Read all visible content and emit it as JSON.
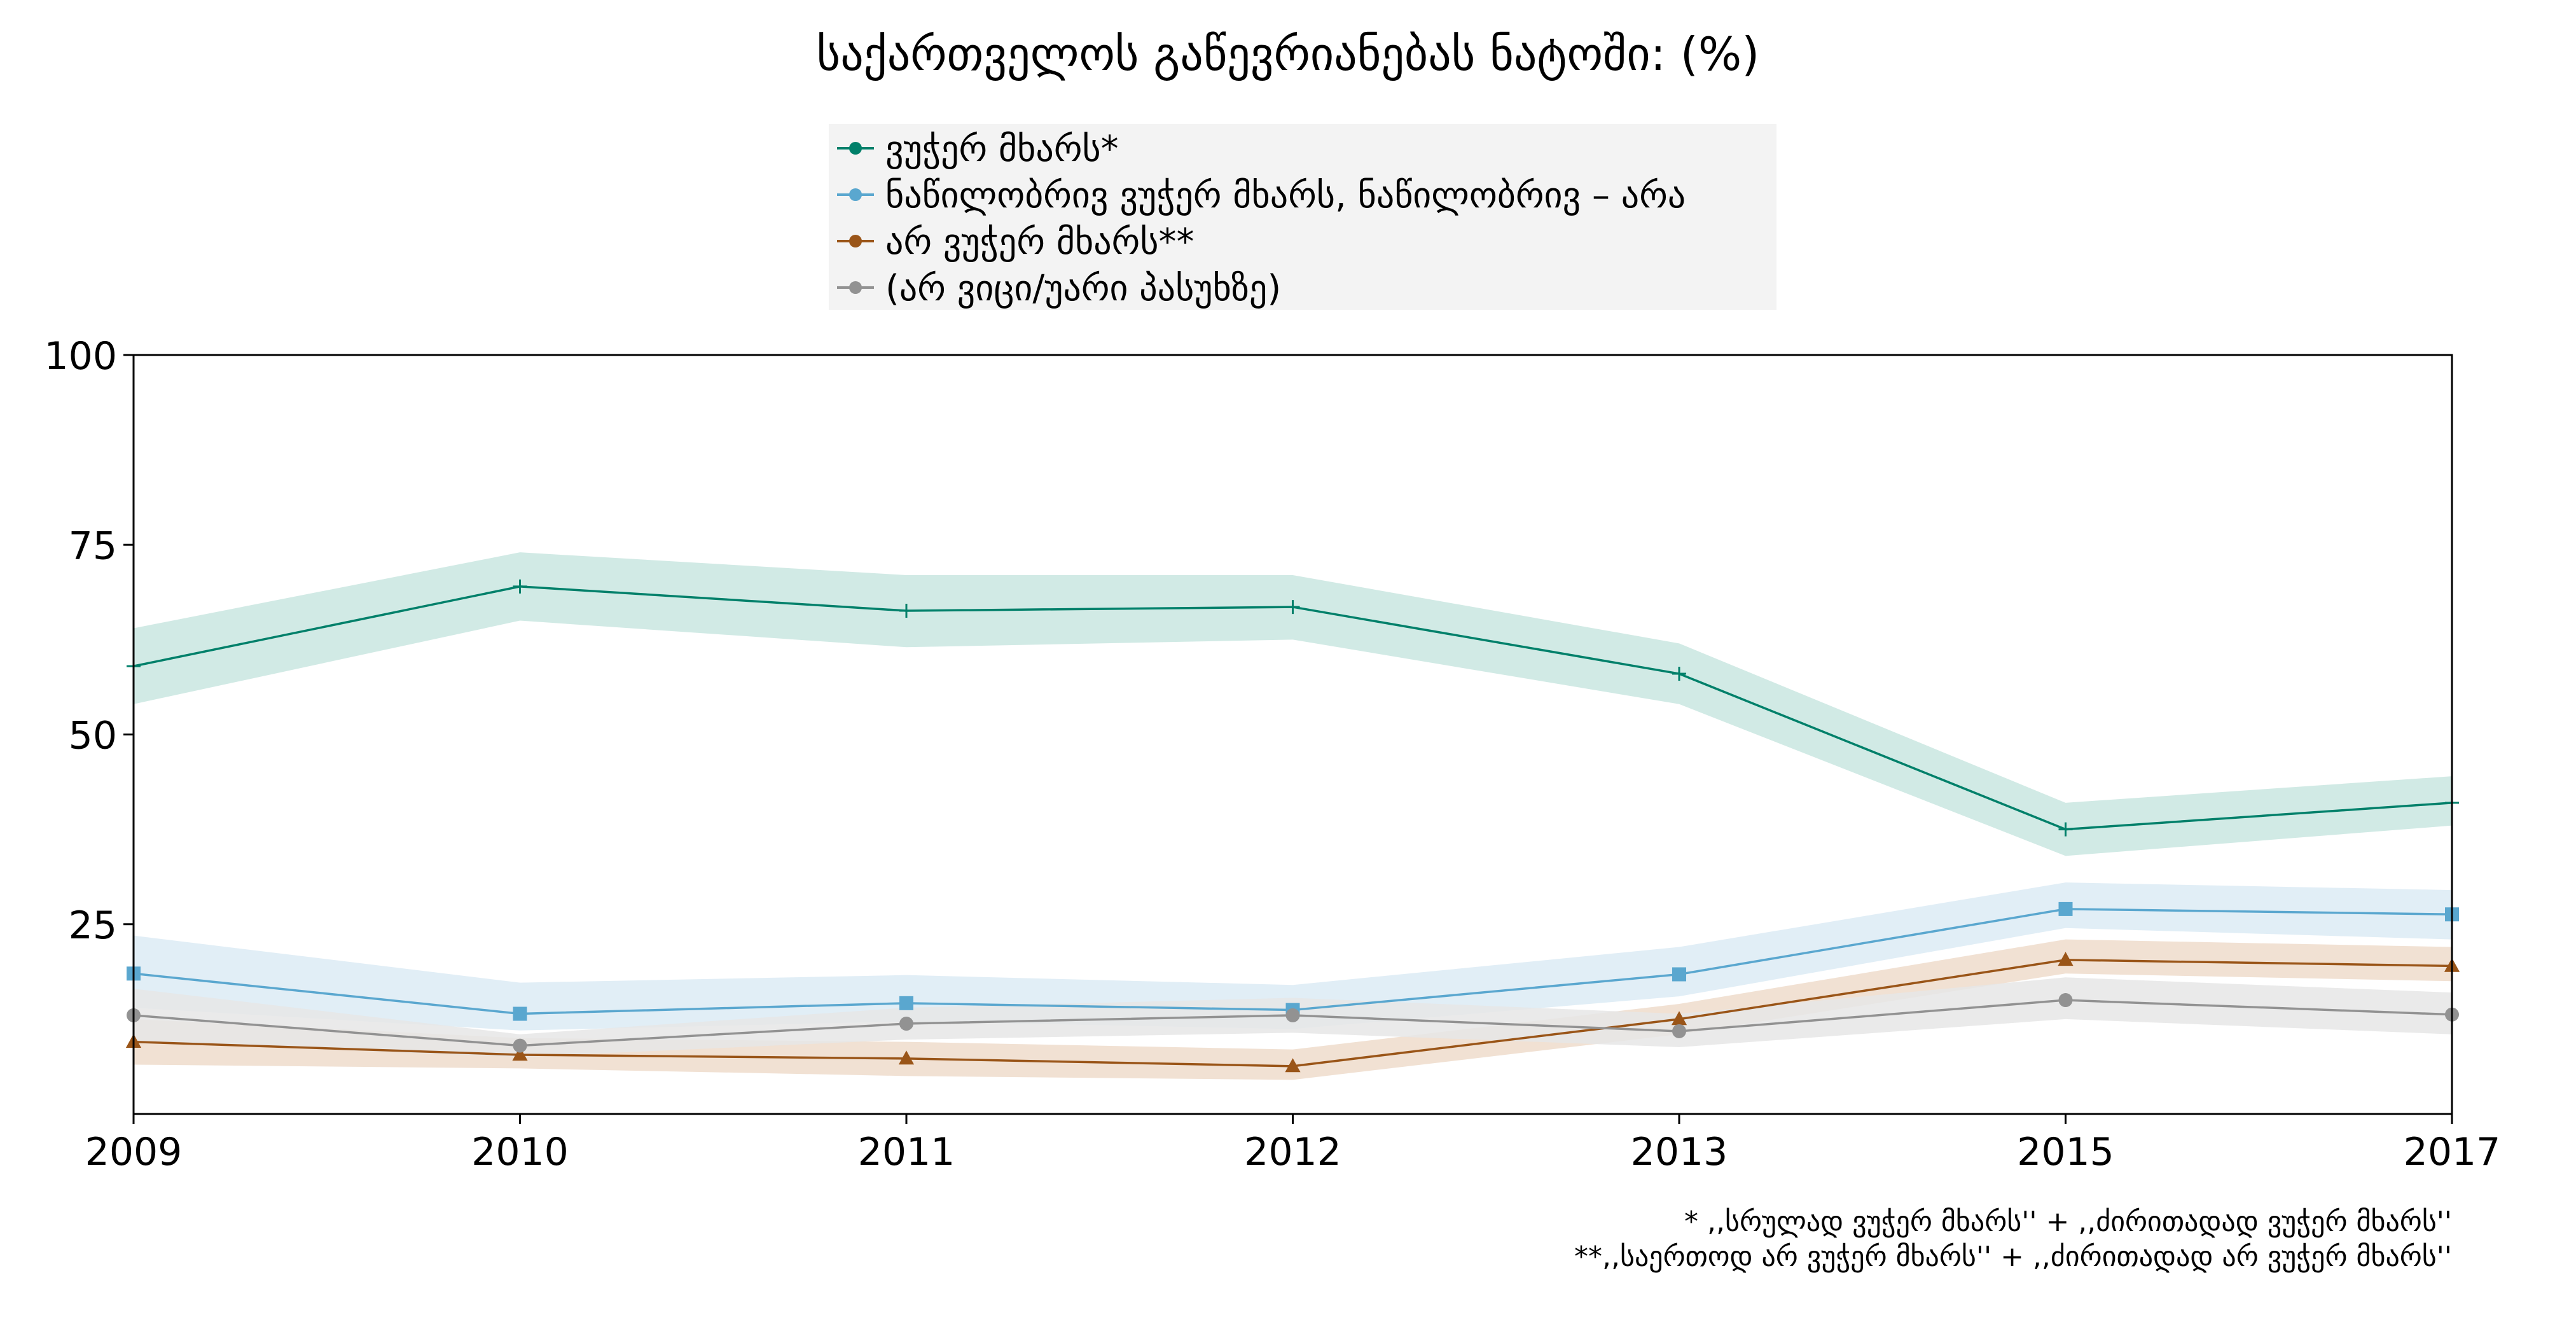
{
  "chart_data": {
    "type": "line",
    "title": "საქართველოს გაწევრიანებას ნატოში: (%)",
    "xlabel": "",
    "ylabel": "",
    "categories": [
      "2009",
      "2010",
      "2011",
      "2012",
      "2013",
      "2015",
      "2017"
    ],
    "ylim": [
      0,
      100
    ],
    "yticks": [
      "100",
      "75",
      "50",
      "25"
    ],
    "grid": false,
    "legend_position": "top-center",
    "series": [
      {
        "name": "ვუჭერ მხარს*",
        "color": "#00806a",
        "band_color": "#c9e6e0",
        "marker": "plus",
        "values": [
          59,
          69.5,
          66.3,
          66.8,
          58,
          37.5,
          41
        ],
        "ci_low": [
          54,
          65,
          61.5,
          62.5,
          54,
          34,
          38
        ],
        "ci_high": [
          64,
          74,
          71,
          71,
          62,
          41,
          44.5
        ]
      },
      {
        "name": "ნაწილობრივ ვუჭერ მხარს, ნაწილობრივ – არა",
        "color": "#5aa7cf",
        "band_color": "#dcebf4",
        "marker": "square",
        "values": [
          18.5,
          13.2,
          14.6,
          13.7,
          18.4,
          27,
          26.3
        ],
        "ci_low": [
          14,
          11,
          12.2,
          11.2,
          15.5,
          24.5,
          23
        ],
        "ci_high": [
          23.5,
          17.3,
          18.3,
          17,
          22,
          30.5,
          29.5
        ]
      },
      {
        "name": "არ ვუჭერ მხარს**",
        "color": "#9a5518",
        "band_color": "#efdccb",
        "marker": "triangle",
        "values": [
          9.5,
          7.8,
          7.3,
          6.3,
          12.5,
          20.3,
          19.5
        ],
        "ci_low": [
          6.5,
          6,
          5,
          4.5,
          10.5,
          18.5,
          17.5
        ],
        "ci_high": [
          12.5,
          10,
          9.5,
          8.5,
          14.5,
          23,
          22
        ]
      },
      {
        "name": "(არ ვიცი/უარი პასუხზე)",
        "color": "#929292",
        "band_color": "#e6e6e6",
        "marker": "circle",
        "values": [
          13,
          9,
          11.9,
          13,
          10.9,
          15,
          13.1
        ],
        "ci_low": [
          9.5,
          7.5,
          9.8,
          10.7,
          8.8,
          12.5,
          10.5
        ],
        "ci_high": [
          16.5,
          10.5,
          14,
          15.3,
          13.2,
          18,
          16
        ]
      }
    ],
    "footnotes": [
      "* ,,სრულად ვუჭერ მხარს'' + ,,ძირითადად ვუჭერ მხარს''",
      "**,,საერთოდ არ ვუჭერ მხარს'' + ,,ძირითადად არ ვუჭერ მხარს''"
    ]
  }
}
